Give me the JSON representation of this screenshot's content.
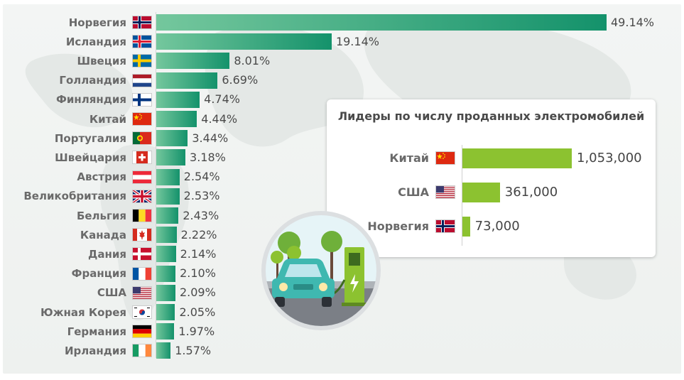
{
  "chart_data": [
    {
      "type": "bar",
      "orientation": "horizontal",
      "categories": [
        "Норвегия",
        "Исландия",
        "Швеция",
        "Голландия",
        "Финляндия",
        "Китай",
        "Португалия",
        "Швейцария",
        "Австрия",
        "Великобритания",
        "Бельгия",
        "Канада",
        "Дания",
        "Франция",
        "США",
        "Южная Корея",
        "Германия",
        "Ирландия"
      ],
      "values": [
        49.14,
        19.14,
        8.01,
        6.69,
        4.74,
        4.44,
        3.44,
        3.18,
        2.54,
        2.53,
        2.43,
        2.22,
        2.14,
        2.1,
        2.09,
        2.05,
        1.97,
        1.57
      ],
      "value_labels": [
        "49.14%",
        "19.14%",
        "8.01%",
        "6.69%",
        "4.74%",
        "4.44%",
        "3.44%",
        "3.18%",
        "2.54%",
        "2.53%",
        "2.43%",
        "2.22%",
        "2.14%",
        "2.10%",
        "2.09%",
        "2.05%",
        "1.97%",
        "1.57%"
      ],
      "flags": [
        "norway-flag",
        "iceland-flag",
        "sweden-flag",
        "netherlands-flag",
        "finland-flag",
        "china-flag",
        "portugal-flag",
        "switzerland-flag",
        "austria-flag",
        "uk-flag",
        "belgium-flag",
        "canada-flag",
        "denmark-flag",
        "france-flag",
        "usa-flag",
        "south-korea-flag",
        "germany-flag",
        "ireland-flag"
      ],
      "xlim": [
        0,
        49.14
      ],
      "grid": false,
      "bar_color_start": "#74c79d",
      "bar_color_end": "#14926b"
    },
    {
      "type": "bar",
      "orientation": "horizontal",
      "title": "Лидеры по числу проданных электромобилей",
      "categories": [
        "Китай",
        "США",
        "Норвегия"
      ],
      "values": [
        1053000,
        361000,
        73000
      ],
      "value_labels": [
        "1,053,000",
        "361,000",
        "73,000"
      ],
      "flags": [
        "china-flag",
        "usa-flag",
        "norway-flag"
      ],
      "xlim": [
        0,
        1053000
      ],
      "grid": false,
      "bar_color": "#8cc230"
    }
  ],
  "illustration": {
    "icon": "electric-car-charging-icon",
    "colors": {
      "car": "#3fb8b0",
      "charger": "#8cc230",
      "sky": "#e6f4f7",
      "road": "#7b7f86"
    }
  }
}
